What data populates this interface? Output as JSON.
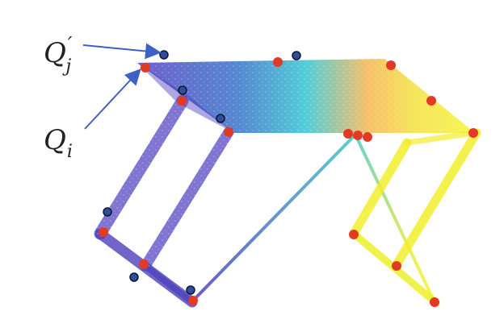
{
  "labels": {
    "q_j_main": "Q",
    "q_j_prime": "′",
    "q_j_sub": "j",
    "q_i_main": "Q",
    "q_i_sub": "i"
  },
  "colors": {
    "red_point": "#e23a24",
    "blue_point": "#2e4d9a",
    "arrow": "#3f61c4",
    "purple": "#4a3fbf",
    "teal": "#2ec0c9",
    "yellow": "#f1ee2a",
    "orange": "#f1b43a"
  }
}
